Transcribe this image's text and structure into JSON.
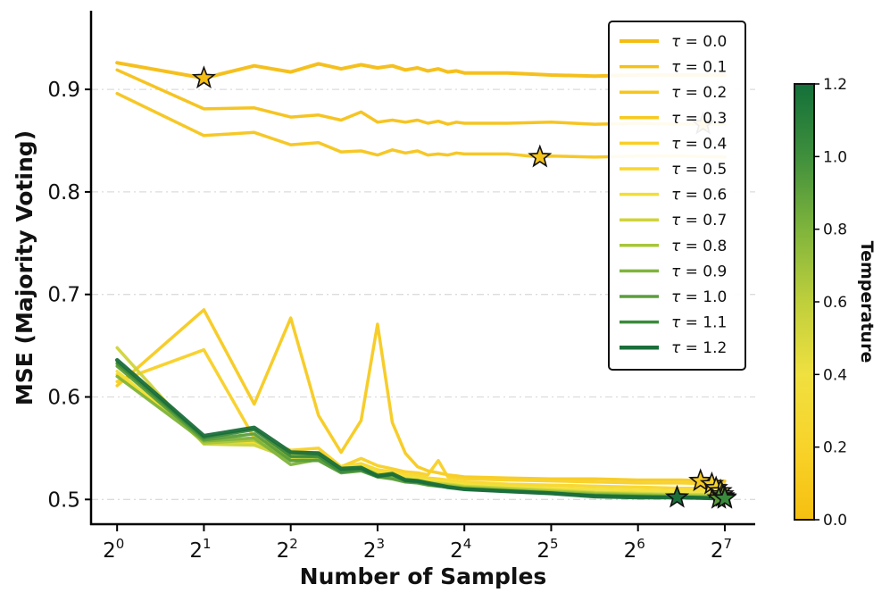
{
  "chart_data": {
    "type": "line",
    "title": "",
    "xlabel": "Number of Samples",
    "ylabel": "MSE (Majority Voting)",
    "xscale": "log2",
    "xlim_log2": [
      -0.3,
      7.35
    ],
    "ylim": [
      0.475,
      0.975
    ],
    "x_ticks": [
      {
        "log2": 0,
        "base": "2",
        "exp": "0"
      },
      {
        "log2": 1,
        "base": "2",
        "exp": "1"
      },
      {
        "log2": 2,
        "base": "2",
        "exp": "2"
      },
      {
        "log2": 3,
        "base": "2",
        "exp": "3"
      },
      {
        "log2": 4,
        "base": "2",
        "exp": "4"
      },
      {
        "log2": 5,
        "base": "2",
        "exp": "5"
      },
      {
        "log2": 6,
        "base": "2",
        "exp": "6"
      },
      {
        "log2": 7,
        "base": "2",
        "exp": "7"
      }
    ],
    "y_ticks": [
      {
        "value": 0.5,
        "label": "0.5"
      },
      {
        "value": 0.6,
        "label": "0.6"
      },
      {
        "value": 0.7,
        "label": "0.7"
      },
      {
        "value": 0.8,
        "label": "0.8"
      },
      {
        "value": 0.9,
        "label": "0.9"
      }
    ],
    "grid": "horizontal dashed",
    "legend_position": "top-right",
    "legend_prefix": "τ = ",
    "series": [
      {
        "name": "0.0",
        "color": "#f4bd12",
        "lw": 4,
        "x": [
          0,
          1,
          1.58,
          2,
          2.32,
          2.58,
          2.81,
          3,
          3.17,
          3.32,
          3.46,
          3.58,
          3.7,
          3.81,
          3.91,
          4,
          4.5,
          5,
          5.5,
          6,
          6.5,
          7
        ],
        "y": [
          0.926,
          0.911,
          0.923,
          0.917,
          0.925,
          0.92,
          0.924,
          0.921,
          0.923,
          0.919,
          0.921,
          0.918,
          0.92,
          0.917,
          0.918,
          0.916,
          0.916,
          0.914,
          0.913,
          0.914,
          0.914,
          0.914
        ],
        "best": {
          "x": 1,
          "y": 0.911
        }
      },
      {
        "name": "0.1",
        "color": "#f5c116",
        "lw": 3.5,
        "x": [
          0,
          1,
          1.58,
          2,
          2.32,
          2.58,
          2.81,
          3,
          3.17,
          3.32,
          3.46,
          3.58,
          3.7,
          3.81,
          3.91,
          4,
          4.5,
          5,
          5.5,
          6,
          6.5,
          6.75,
          7
        ],
        "y": [
          0.919,
          0.881,
          0.882,
          0.873,
          0.875,
          0.87,
          0.878,
          0.868,
          0.87,
          0.868,
          0.87,
          0.867,
          0.869,
          0.866,
          0.868,
          0.867,
          0.867,
          0.868,
          0.866,
          0.867,
          0.866,
          0.866,
          0.866
        ],
        "best": {
          "x": 6.75,
          "y": 0.866
        }
      },
      {
        "name": "0.2",
        "color": "#f6c51b",
        "lw": 3.5,
        "x": [
          0,
          1,
          1.58,
          2,
          2.32,
          2.58,
          2.81,
          3,
          3.17,
          3.32,
          3.46,
          3.58,
          3.7,
          3.81,
          3.91,
          4,
          4.5,
          4.87,
          5,
          5.5,
          6,
          6.5,
          7
        ],
        "y": [
          0.896,
          0.855,
          0.858,
          0.846,
          0.848,
          0.839,
          0.84,
          0.836,
          0.841,
          0.838,
          0.84,
          0.836,
          0.837,
          0.836,
          0.838,
          0.837,
          0.837,
          0.834,
          0.835,
          0.834,
          0.835,
          0.835,
          0.834
        ],
        "best": {
          "x": 4.87,
          "y": 0.834
        }
      },
      {
        "name": "0.3",
        "color": "#f7ca1f",
        "lw": 3.5,
        "x": [
          0,
          1,
          1.58,
          2,
          2.32,
          2.58,
          2.81,
          3,
          3.17,
          3.32,
          3.46,
          3.58,
          3.7,
          3.81,
          3.91,
          4,
          4.5,
          5,
          5.5,
          6,
          6.5,
          7
        ],
        "y": [
          0.611,
          0.685,
          0.593,
          0.677,
          0.582,
          0.546,
          0.577,
          0.671,
          0.575,
          0.545,
          0.532,
          0.528,
          0.526,
          0.524,
          0.523,
          0.522,
          0.521,
          0.52,
          0.52,
          0.519,
          0.519,
          0.518
        ],
        "best": {
          "x": 6.72,
          "y": 0.518
        }
      },
      {
        "name": "0.4",
        "color": "#f8d025",
        "lw": 3.5,
        "x": [
          0,
          1,
          1.58,
          2,
          2.32,
          2.58,
          2.81,
          3,
          3.17,
          3.32,
          3.46,
          3.58,
          3.7,
          3.81,
          3.91,
          4,
          4.5,
          5,
          5.5,
          6,
          6.5,
          7
        ],
        "y": [
          0.615,
          0.646,
          0.56,
          0.548,
          0.55,
          0.532,
          0.54,
          0.533,
          0.53,
          0.527,
          0.526,
          0.524,
          0.538,
          0.522,
          0.521,
          0.52,
          0.519,
          0.518,
          0.517,
          0.516,
          0.516,
          0.515
        ],
        "best": {
          "x": 6.85,
          "y": 0.515
        }
      },
      {
        "name": "0.5",
        "color": "#f8d62a",
        "lw": 3.5,
        "x": [
          0,
          1,
          1.58,
          2,
          2.32,
          2.58,
          2.81,
          3,
          3.17,
          3.32,
          3.46,
          3.58,
          3.7,
          3.81,
          3.91,
          4,
          4.5,
          5,
          5.5,
          6,
          6.5,
          7
        ],
        "y": [
          0.622,
          0.558,
          0.556,
          0.545,
          0.546,
          0.532,
          0.535,
          0.529,
          0.527,
          0.524,
          0.523,
          0.521,
          0.52,
          0.519,
          0.518,
          0.517,
          0.515,
          0.514,
          0.513,
          0.512,
          0.511,
          0.511
        ],
        "best": {
          "x": 6.9,
          "y": 0.511
        }
      },
      {
        "name": "0.6",
        "color": "#f1df35",
        "lw": 3.5,
        "x": [
          0,
          1,
          1.58,
          2,
          2.32,
          2.58,
          2.81,
          3,
          3.17,
          3.32,
          3.46,
          3.58,
          3.7,
          3.81,
          3.91,
          4,
          4.5,
          5,
          5.5,
          6,
          6.5,
          7
        ],
        "y": [
          0.625,
          0.556,
          0.555,
          0.543,
          0.544,
          0.531,
          0.533,
          0.527,
          0.525,
          0.522,
          0.521,
          0.519,
          0.518,
          0.517,
          0.516,
          0.515,
          0.513,
          0.511,
          0.51,
          0.509,
          0.508,
          0.508
        ],
        "best": {
          "x": 6.95,
          "y": 0.508
        }
      },
      {
        "name": "0.7",
        "color": "#cfd43a",
        "lw": 3.5,
        "x": [
          0,
          1,
          1.58,
          2,
          2.32,
          2.58,
          2.81,
          3,
          3.17,
          3.32,
          3.46,
          3.58,
          3.7,
          3.81,
          3.91,
          4,
          4.5,
          5,
          5.5,
          6,
          6.5,
          7
        ],
        "y": [
          0.648,
          0.554,
          0.553,
          0.54,
          0.541,
          0.529,
          0.531,
          0.525,
          0.523,
          0.52,
          0.519,
          0.517,
          0.516,
          0.515,
          0.514,
          0.513,
          0.511,
          0.509,
          0.507,
          0.506,
          0.505,
          0.505
        ],
        "best": {
          "x": 6.97,
          "y": 0.505
        }
      },
      {
        "name": "0.8",
        "color": "#a8c63a",
        "lw": 3.5,
        "x": [
          0,
          1,
          1.58,
          2,
          2.32,
          2.58,
          2.81,
          3,
          3.17,
          3.32,
          3.46,
          3.58,
          3.7,
          3.81,
          3.91,
          4,
          4.5,
          5,
          5.5,
          6,
          6.5,
          7
        ],
        "y": [
          0.632,
          0.555,
          0.558,
          0.538,
          0.54,
          0.528,
          0.53,
          0.524,
          0.522,
          0.519,
          0.518,
          0.516,
          0.515,
          0.514,
          0.513,
          0.512,
          0.51,
          0.508,
          0.506,
          0.505,
          0.504,
          0.503
        ],
        "best": {
          "x": 6.98,
          "y": 0.503
        }
      },
      {
        "name": "0.9",
        "color": "#80b43c",
        "lw": 3.5,
        "x": [
          0,
          1,
          1.58,
          2,
          2.32,
          2.58,
          2.81,
          3,
          3.17,
          3.32,
          3.46,
          3.58,
          3.7,
          3.81,
          3.91,
          4,
          4.5,
          5,
          5.5,
          6,
          6.5,
          7
        ],
        "y": [
          0.62,
          0.557,
          0.56,
          0.534,
          0.539,
          0.527,
          0.529,
          0.523,
          0.521,
          0.518,
          0.517,
          0.515,
          0.514,
          0.513,
          0.512,
          0.511,
          0.509,
          0.507,
          0.505,
          0.504,
          0.503,
          0.502
        ],
        "best": {
          "x": 7.0,
          "y": 0.502
        }
      },
      {
        "name": "1.0",
        "color": "#5b9e3b",
        "lw": 3.5,
        "x": [
          0,
          1,
          1.58,
          2,
          2.32,
          2.58,
          2.81,
          3,
          3.17,
          3.32,
          3.46,
          3.58,
          3.7,
          3.81,
          3.91,
          4,
          4.5,
          5,
          5.5,
          6,
          6.5,
          7
        ],
        "y": [
          0.63,
          0.558,
          0.564,
          0.538,
          0.538,
          0.526,
          0.528,
          0.522,
          0.52,
          0.517,
          0.516,
          0.514,
          0.513,
          0.512,
          0.511,
          0.51,
          0.508,
          0.506,
          0.504,
          0.503,
          0.502,
          0.501
        ],
        "best": {
          "x": 6.93,
          "y": 0.501
        }
      },
      {
        "name": "1.1",
        "color": "#3a8a3c",
        "lw": 3.5,
        "x": [
          0,
          1,
          1.58,
          2,
          2.32,
          2.58,
          2.81,
          3,
          3.17,
          3.32,
          3.46,
          3.58,
          3.7,
          3.81,
          3.91,
          4,
          4.5,
          5,
          5.5,
          6,
          6.5,
          7
        ],
        "y": [
          0.633,
          0.56,
          0.568,
          0.542,
          0.542,
          0.527,
          0.529,
          0.522,
          0.524,
          0.518,
          0.517,
          0.515,
          0.513,
          0.512,
          0.511,
          0.51,
          0.508,
          0.506,
          0.504,
          0.503,
          0.502,
          0.501
        ],
        "best": {
          "x": 7.0,
          "y": 0.501
        }
      },
      {
        "name": "1.2",
        "color": "#1a6e3a",
        "lw": 4.5,
        "x": [
          0,
          1,
          1.58,
          2,
          2.32,
          2.58,
          2.81,
          3,
          3.17,
          3.32,
          3.46,
          3.58,
          3.7,
          3.81,
          3.91,
          4,
          4.5,
          5,
          5.5,
          6,
          6.5,
          7
        ],
        "y": [
          0.636,
          0.562,
          0.57,
          0.546,
          0.545,
          0.53,
          0.531,
          0.523,
          0.525,
          0.519,
          0.518,
          0.516,
          0.514,
          0.512,
          0.511,
          0.51,
          0.508,
          0.506,
          0.503,
          0.502,
          0.502,
          0.501
        ],
        "best": {
          "x": 6.45,
          "y": 0.502
        }
      }
    ],
    "colorbar": {
      "label": "Temperature",
      "min": 0.0,
      "max": 1.2,
      "ticks": [
        {
          "value": 0.0,
          "label": "0.0"
        },
        {
          "value": 0.2,
          "label": "0.2"
        },
        {
          "value": 0.4,
          "label": "0.4"
        },
        {
          "value": 0.6,
          "label": "0.6"
        },
        {
          "value": 0.8,
          "label": "0.8"
        },
        {
          "value": 1.0,
          "label": "1.0"
        },
        {
          "value": 1.2,
          "label": "1.2"
        }
      ],
      "gradient": [
        "#f6bf10",
        "#f8d32a",
        "#f0e040",
        "#bfcf3c",
        "#7fb43c",
        "#3f8f3c",
        "#13703a"
      ]
    }
  }
}
